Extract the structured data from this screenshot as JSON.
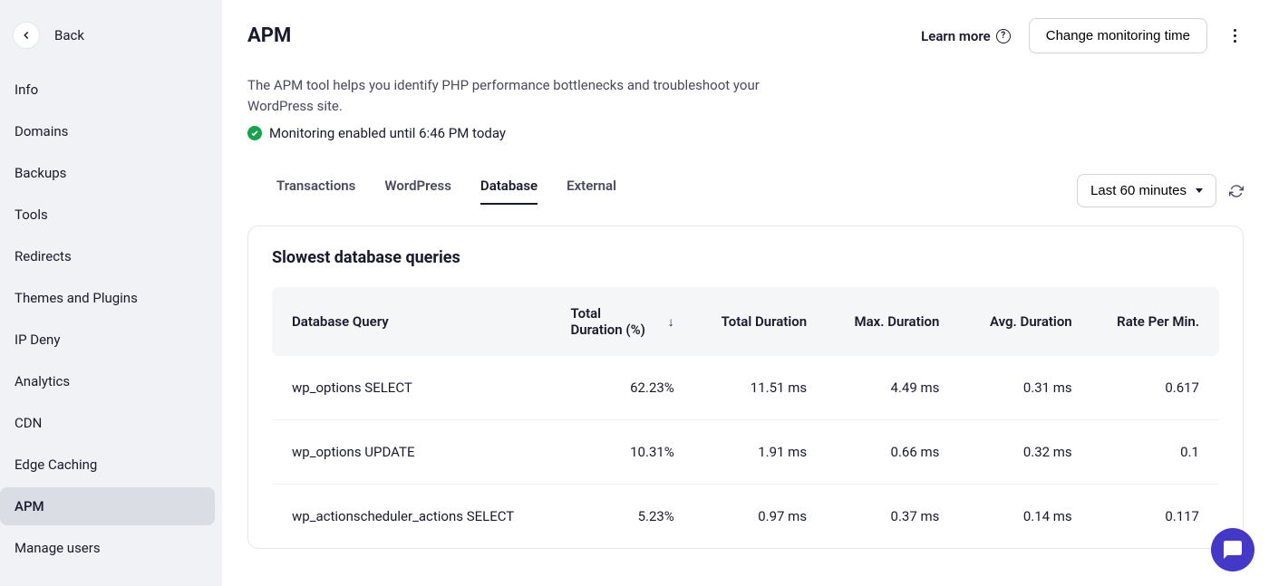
{
  "sidebar": {
    "back_label": "Back",
    "items": [
      {
        "label": "Info",
        "active": false
      },
      {
        "label": "Domains",
        "active": false
      },
      {
        "label": "Backups",
        "active": false
      },
      {
        "label": "Tools",
        "active": false
      },
      {
        "label": "Redirects",
        "active": false
      },
      {
        "label": "Themes and Plugins",
        "active": false
      },
      {
        "label": "IP Deny",
        "active": false
      },
      {
        "label": "Analytics",
        "active": false
      },
      {
        "label": "CDN",
        "active": false
      },
      {
        "label": "Edge Caching",
        "active": false
      },
      {
        "label": "APM",
        "active": true
      },
      {
        "label": "Manage users",
        "active": false
      }
    ]
  },
  "header": {
    "title": "APM",
    "learn_more": "Learn more",
    "change_time": "Change monitoring time"
  },
  "intro": {
    "description": "The APM tool helps you identify PHP performance bottlenecks and troubleshoot your WordPress site.",
    "status": "Monitoring enabled until 6:46 PM today"
  },
  "tabs": {
    "items": [
      {
        "label": "Transactions",
        "active": false
      },
      {
        "label": "WordPress",
        "active": false
      },
      {
        "label": "Database",
        "active": true
      },
      {
        "label": "External",
        "active": false
      }
    ],
    "time_range": "Last 60 minutes"
  },
  "table": {
    "title": "Slowest database queries",
    "columns": {
      "query": "Database Query",
      "total_pct": "Total Duration (%)",
      "total": "Total Duration",
      "max": "Max. Duration",
      "avg": "Avg. Duration",
      "rate": "Rate Per Min."
    },
    "rows": [
      {
        "query": "wp_options SELECT",
        "total_pct": "62.23%",
        "total": "11.51 ms",
        "max": "4.49 ms",
        "avg": "0.31 ms",
        "rate": "0.617"
      },
      {
        "query": "wp_options UPDATE",
        "total_pct": "10.31%",
        "total": "1.91 ms",
        "max": "0.66 ms",
        "avg": "0.32 ms",
        "rate": "0.1"
      },
      {
        "query": "wp_actionscheduler_actions SELECT",
        "total_pct": "5.23%",
        "total": "0.97 ms",
        "max": "0.37 ms",
        "avg": "0.14 ms",
        "rate": "0.117"
      }
    ]
  },
  "colors": {
    "sidebar_bg": "#f1f2f5",
    "sidebar_active": "#dadde3",
    "border": "#e4e6eb",
    "text": "#1a1a2e",
    "muted": "#4a4a5e",
    "thead_bg": "#f5f6f8",
    "success": "#16a34a",
    "chat": "#4338ca"
  }
}
